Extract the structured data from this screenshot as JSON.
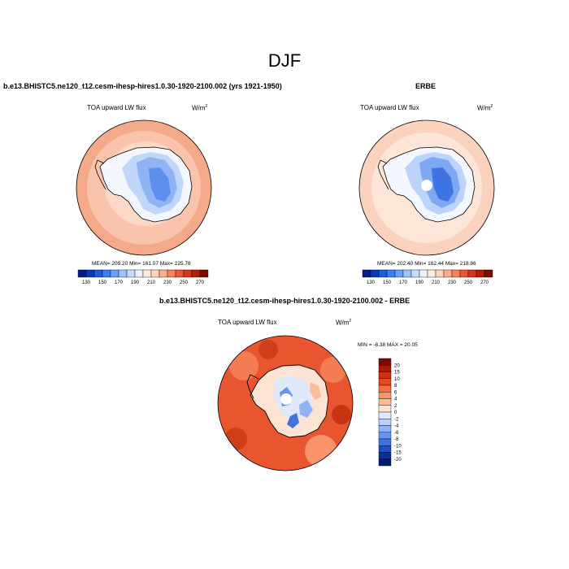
{
  "figure": {
    "title": "DJF"
  },
  "panels": [
    {
      "title": "b.e13.BHISTC5.ne120_t12.cesm-ihesp-hires1.0.30-1920-2100.002 (yrs 1921-1950)",
      "left_label": "TOA upward LW flux",
      "units": "W/m",
      "units_sup": "2",
      "stats": "MEAN= 209.20  Min= 161.07  Max= 225.78"
    },
    {
      "title": "ERBE",
      "left_label": "TOA upward LW flux",
      "units": "W/m",
      "units_sup": "2",
      "stats": "MEAN= 202.40  Min= 162.44  Max= 218.86"
    },
    {
      "title": "b.e13.BHISTC5.ne120_t12.cesm-ihesp-hires1.0.30-1920-2100.002 - ERBE",
      "left_label": "TOA upward LW flux",
      "units": "W/m",
      "units_sup": "2",
      "stats": "MIN =  -8.38 MAX =  20.05"
    }
  ],
  "colorbar_abs": {
    "labels": [
      "130",
      "150",
      "170",
      "190",
      "210",
      "230",
      "250",
      "270"
    ],
    "colors": [
      "#061c80",
      "#0d37b8",
      "#1c5ade",
      "#3a7ff0",
      "#6aa1f7",
      "#9bc2fb",
      "#c7dcfc",
      "#eaf1fd",
      "#fdebe0",
      "#fcd3bc",
      "#faae8e",
      "#f5835f",
      "#ea5635",
      "#d6361a",
      "#b0200c",
      "#7a0c04"
    ]
  },
  "colorbar_diff": {
    "labels": [
      "20",
      "15",
      "10",
      "8",
      "6",
      "4",
      "2",
      "0",
      "-2",
      "-4",
      "-6",
      "-8",
      "-10",
      "-15",
      "-20"
    ],
    "colors": [
      "#7a0c04",
      "#a81c09",
      "#d0320f",
      "#e64a22",
      "#f26e43",
      "#f8956c",
      "#fbbc9b",
      "#fde3d2",
      "#dfe9fb",
      "#b9d0f8",
      "#8fb3f3",
      "#6795ec",
      "#3f73e0",
      "#1d4fc8",
      "#0a2f9e",
      "#051a6e"
    ]
  }
}
